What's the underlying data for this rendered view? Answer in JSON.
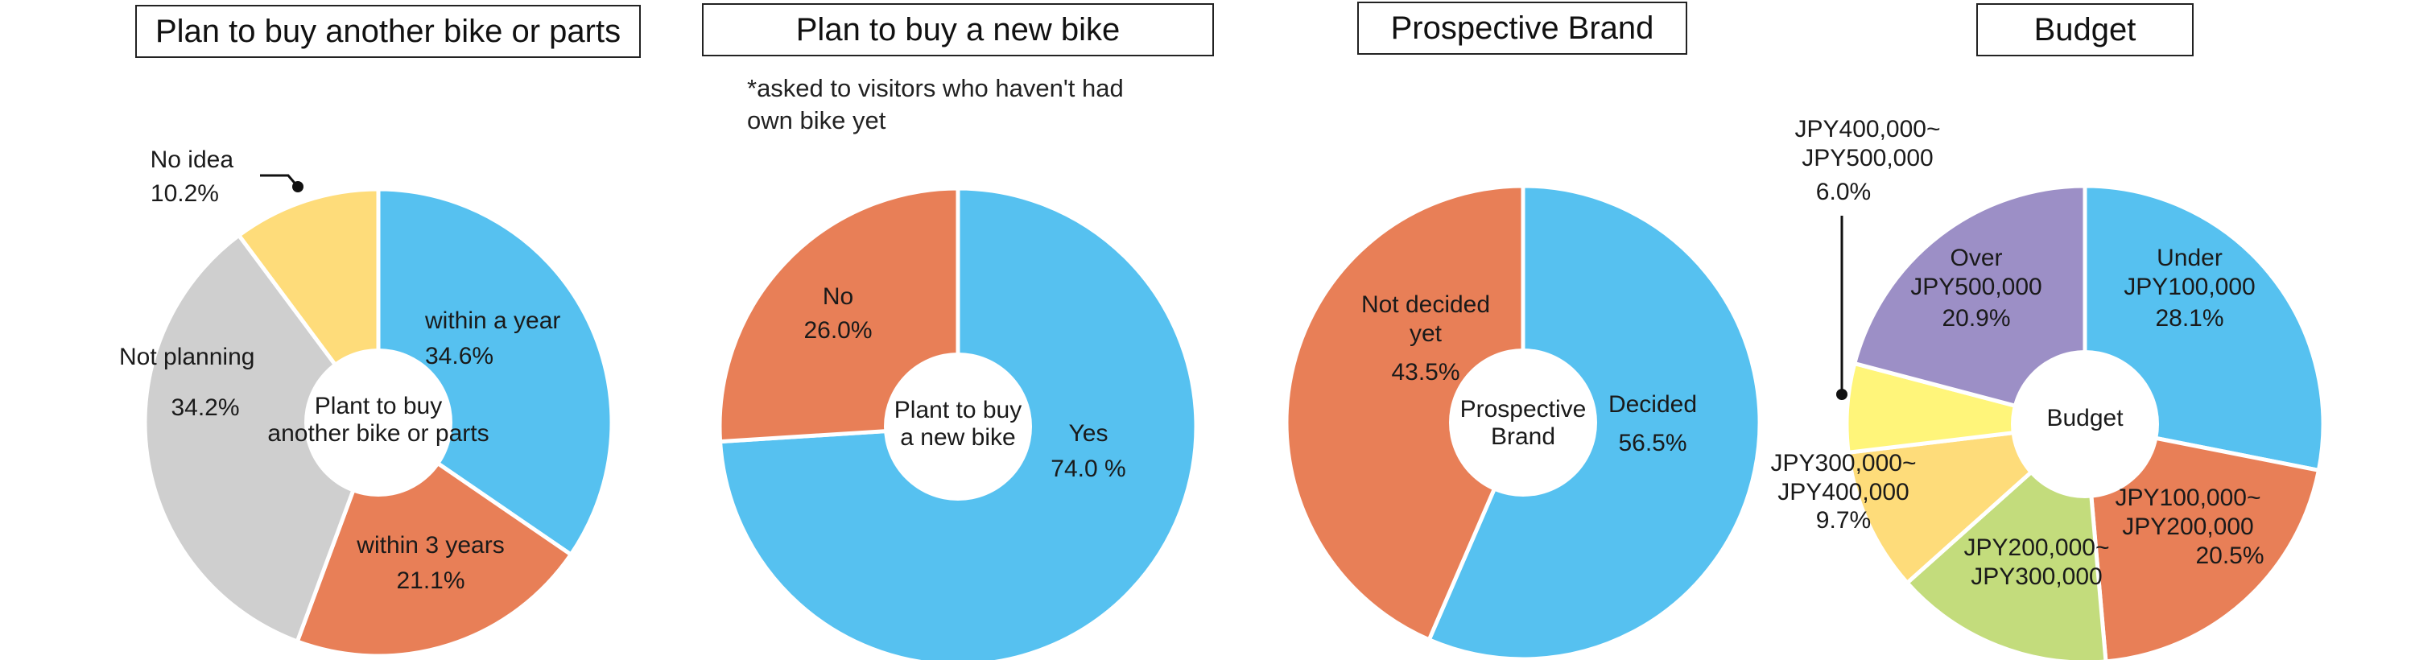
{
  "chart_data": [
    {
      "type": "pie",
      "title": "Plan to buy another bike or parts",
      "center_label": [
        "Plant to buy",
        "another bike or parts"
      ],
      "slices": [
        {
          "name": "within a year",
          "value": 34.6,
          "value_label": "34.6%",
          "color": "#56C1F0"
        },
        {
          "name": "within 3 years",
          "value": 21.1,
          "value_label": "21.1%",
          "color": "#E87F57"
        },
        {
          "name": "Not planning",
          "value": 34.2,
          "value_label": "34.2%",
          "color": "#CFCFCF"
        },
        {
          "name": "No idea",
          "value": 10.2,
          "value_label": "10.2%",
          "color": "#FEDC7A"
        }
      ]
    },
    {
      "type": "pie",
      "title": "Plan to buy a new bike",
      "note": "*asked to visitors who haven't had own bike yet",
      "center_label": [
        "Plant to buy",
        "a new bike"
      ],
      "slices": [
        {
          "name": "Yes",
          "value": 74.0,
          "value_label": "74.0 %",
          "color": "#56C1F0"
        },
        {
          "name": "No",
          "value": 26.0,
          "value_label": "26.0%",
          "color": "#E87F57"
        }
      ]
    },
    {
      "type": "pie",
      "title": "Prospective Brand",
      "center_label": [
        "Prospective",
        "Brand"
      ],
      "slices": [
        {
          "name": "Decided",
          "value": 56.5,
          "value_label": "56.5%",
          "color": "#56C1F0"
        },
        {
          "name": "Not decided yet",
          "value": 43.5,
          "value_label": "43.5%",
          "color": "#E87F57"
        }
      ]
    },
    {
      "type": "pie",
      "title": "Budget",
      "center_label": [
        "Budget"
      ],
      "slices": [
        {
          "name": "Under JPY100,000",
          "value": 28.1,
          "value_label": "28.1%",
          "color": "#56C1F0"
        },
        {
          "name": "JPY100,000~ JPY200,000",
          "value": 20.5,
          "value_label": "20.5%",
          "color": "#E87F57"
        },
        {
          "name": "JPY200,000~ JPY300,000",
          "value": 14.8,
          "value_label": "",
          "color": "#C3DC7C"
        },
        {
          "name": "JPY300,000~ JPY400,000",
          "value": 9.7,
          "value_label": "9.7%",
          "color": "#FEDC7A"
        },
        {
          "name": "JPY400,000~ JPY500,000",
          "value": 6.0,
          "value_label": "6.0%",
          "color": "#FFF57A"
        },
        {
          "name": "Over JPY500,000",
          "value": 20.9,
          "value_label": "20.9%",
          "color": "#9C8FC6"
        }
      ]
    }
  ]
}
